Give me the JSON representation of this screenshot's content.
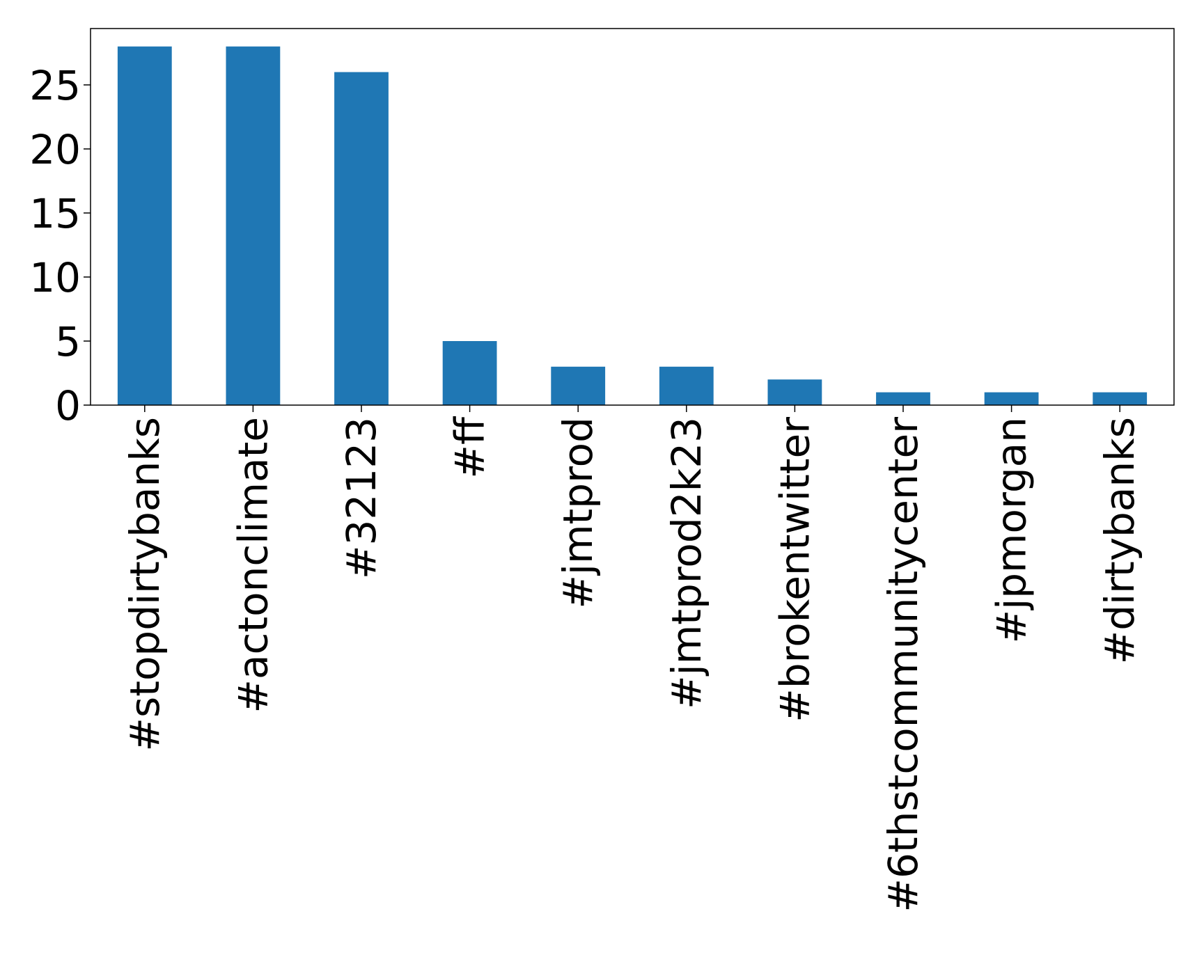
{
  "chart_data": {
    "type": "bar",
    "categories": [
      "#stopdirtybanks",
      "#actonclimate",
      "#32123",
      "#ff",
      "#jmtprod",
      "#jmtprod2k23",
      "#brokentwitter",
      "#6thstcommunitycenter",
      "#jpmorgan",
      "#dirtybanks"
    ],
    "values": [
      28,
      28,
      26,
      5,
      3,
      3,
      2,
      1,
      1,
      1
    ],
    "ylim": [
      0,
      29.4
    ],
    "yticks": [
      "0",
      "5",
      "10",
      "15",
      "20",
      "25"
    ],
    "grid": false,
    "bar_color": "#1f77b4"
  }
}
